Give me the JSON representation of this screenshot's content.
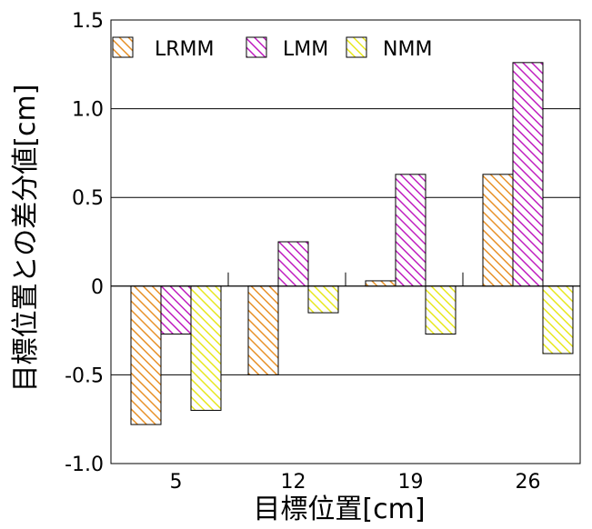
{
  "chart_data": {
    "type": "bar",
    "categories": [
      "5",
      "12",
      "19",
      "26"
    ],
    "series": [
      {
        "name": "LRMM",
        "values": [
          -0.78,
          -0.5,
          0.03,
          0.63
        ],
        "color": "#e8922a",
        "pattern": "diagonal-hatch"
      },
      {
        "name": "LMM",
        "values": [
          -0.27,
          0.25,
          0.63,
          1.26
        ],
        "color": "#c020c0",
        "pattern": "diagonal-hatch"
      },
      {
        "name": "NMM",
        "values": [
          -0.7,
          -0.15,
          -0.27,
          -0.38
        ],
        "color": "#e8e820",
        "pattern": "diagonal-hatch"
      }
    ],
    "yticks": [
      "1.5",
      "1.0",
      "0.5",
      "0",
      "-0.5",
      "-1.0"
    ],
    "ytick_values": [
      1.5,
      1.0,
      0.5,
      0,
      -0.5,
      -1.0
    ],
    "ylim": [
      -1.0,
      1.5
    ],
    "xlabel": "目標位置[cm]",
    "ylabel": "目標位置との差分値[cm]",
    "title": "",
    "grid": true,
    "legend_position": "top-left"
  }
}
